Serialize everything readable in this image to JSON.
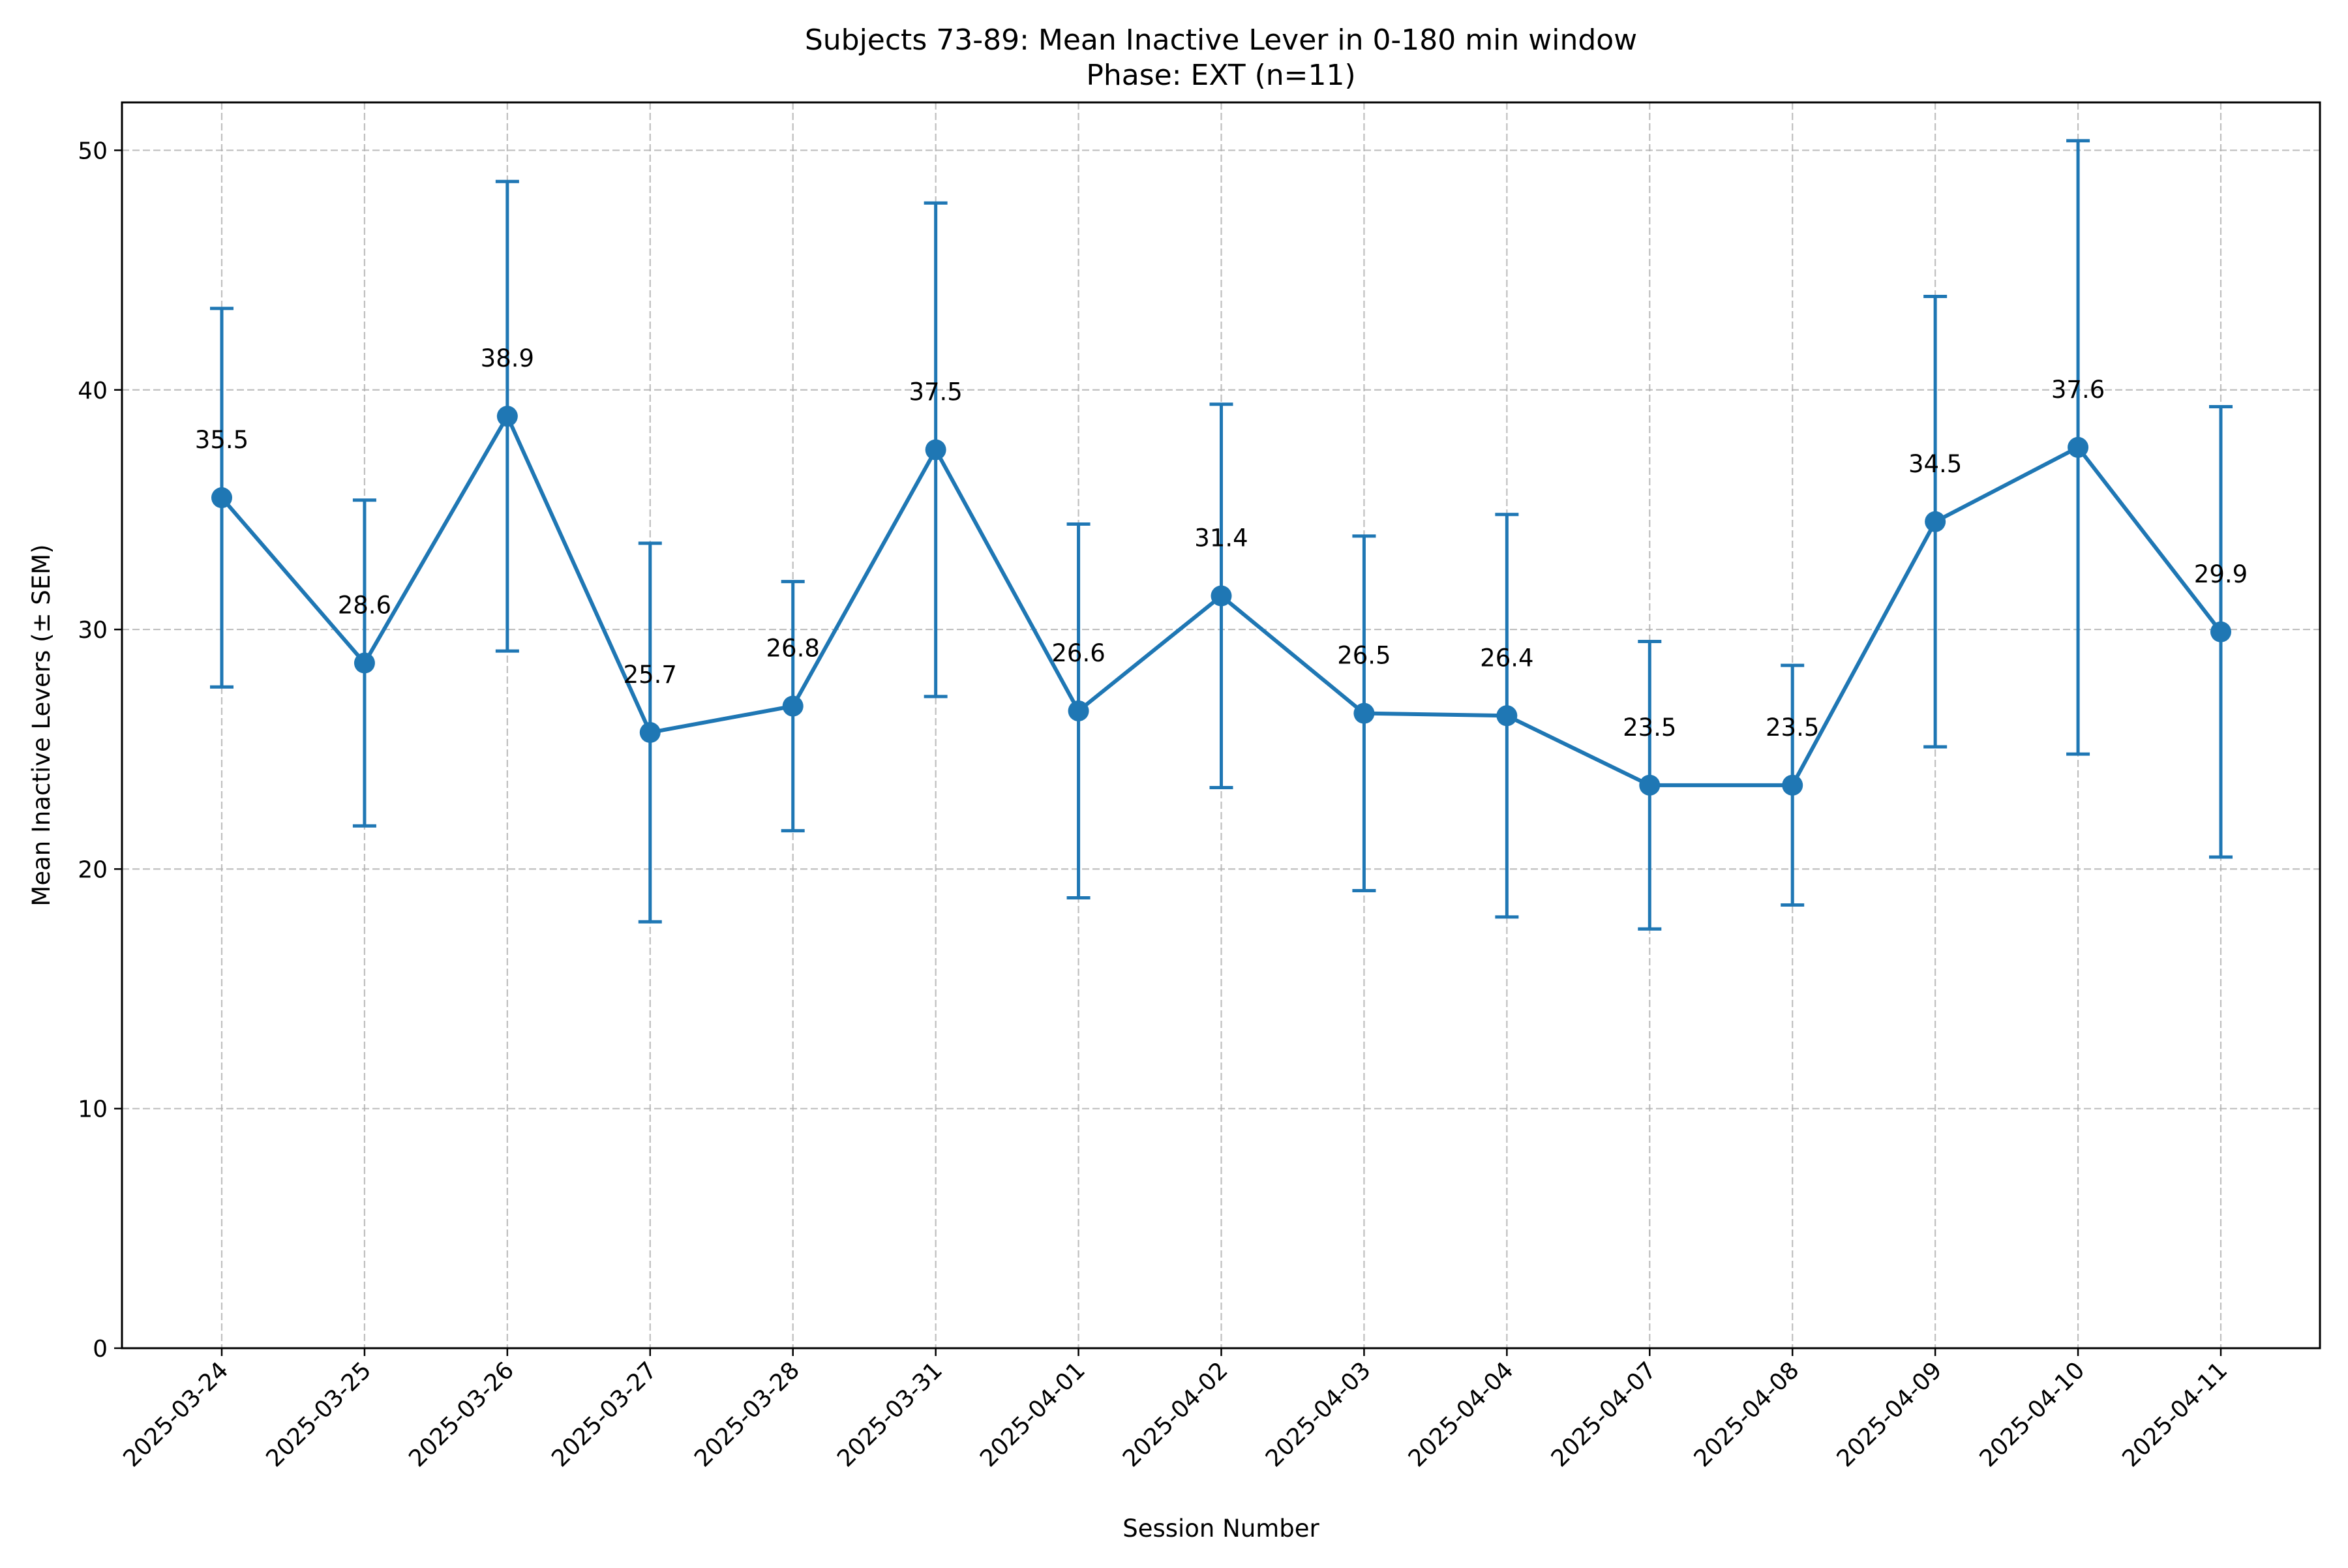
{
  "chart_data": {
    "type": "line",
    "title": "Subjects 73-89: Mean Inactive Lever in 0-180 min window",
    "subtitle": "Phase: EXT (n=11)",
    "xlabel": "Session Number",
    "ylabel": "Mean Inactive Levers (± SEM)",
    "ylim": [
      0,
      52
    ],
    "yticks": [
      0,
      10,
      20,
      30,
      40,
      50
    ],
    "grid": true,
    "color": "#1f77b4",
    "categories": [
      "2025-03-24",
      "2025-03-25",
      "2025-03-26",
      "2025-03-27",
      "2025-03-28",
      "2025-03-31",
      "2025-04-01",
      "2025-04-02",
      "2025-04-03",
      "2025-04-04",
      "2025-04-07",
      "2025-04-08",
      "2025-04-09",
      "2025-04-10",
      "2025-04-11"
    ],
    "values": [
      35.5,
      28.6,
      38.9,
      25.7,
      26.8,
      37.5,
      26.6,
      31.4,
      26.5,
      26.4,
      23.5,
      23.5,
      34.5,
      37.6,
      29.9
    ],
    "value_labels": [
      "35.5",
      "28.6",
      "38.9",
      "25.7",
      "26.8",
      "37.5",
      "26.6",
      "31.4",
      "26.5",
      "26.4",
      "23.5",
      "23.5",
      "34.5",
      "37.6",
      "29.9"
    ],
    "sem": [
      7.9,
      6.8,
      9.8,
      7.9,
      5.2,
      10.3,
      7.8,
      8.0,
      7.4,
      8.4,
      6.0,
      5.0,
      9.4,
      12.8,
      9.4
    ]
  }
}
